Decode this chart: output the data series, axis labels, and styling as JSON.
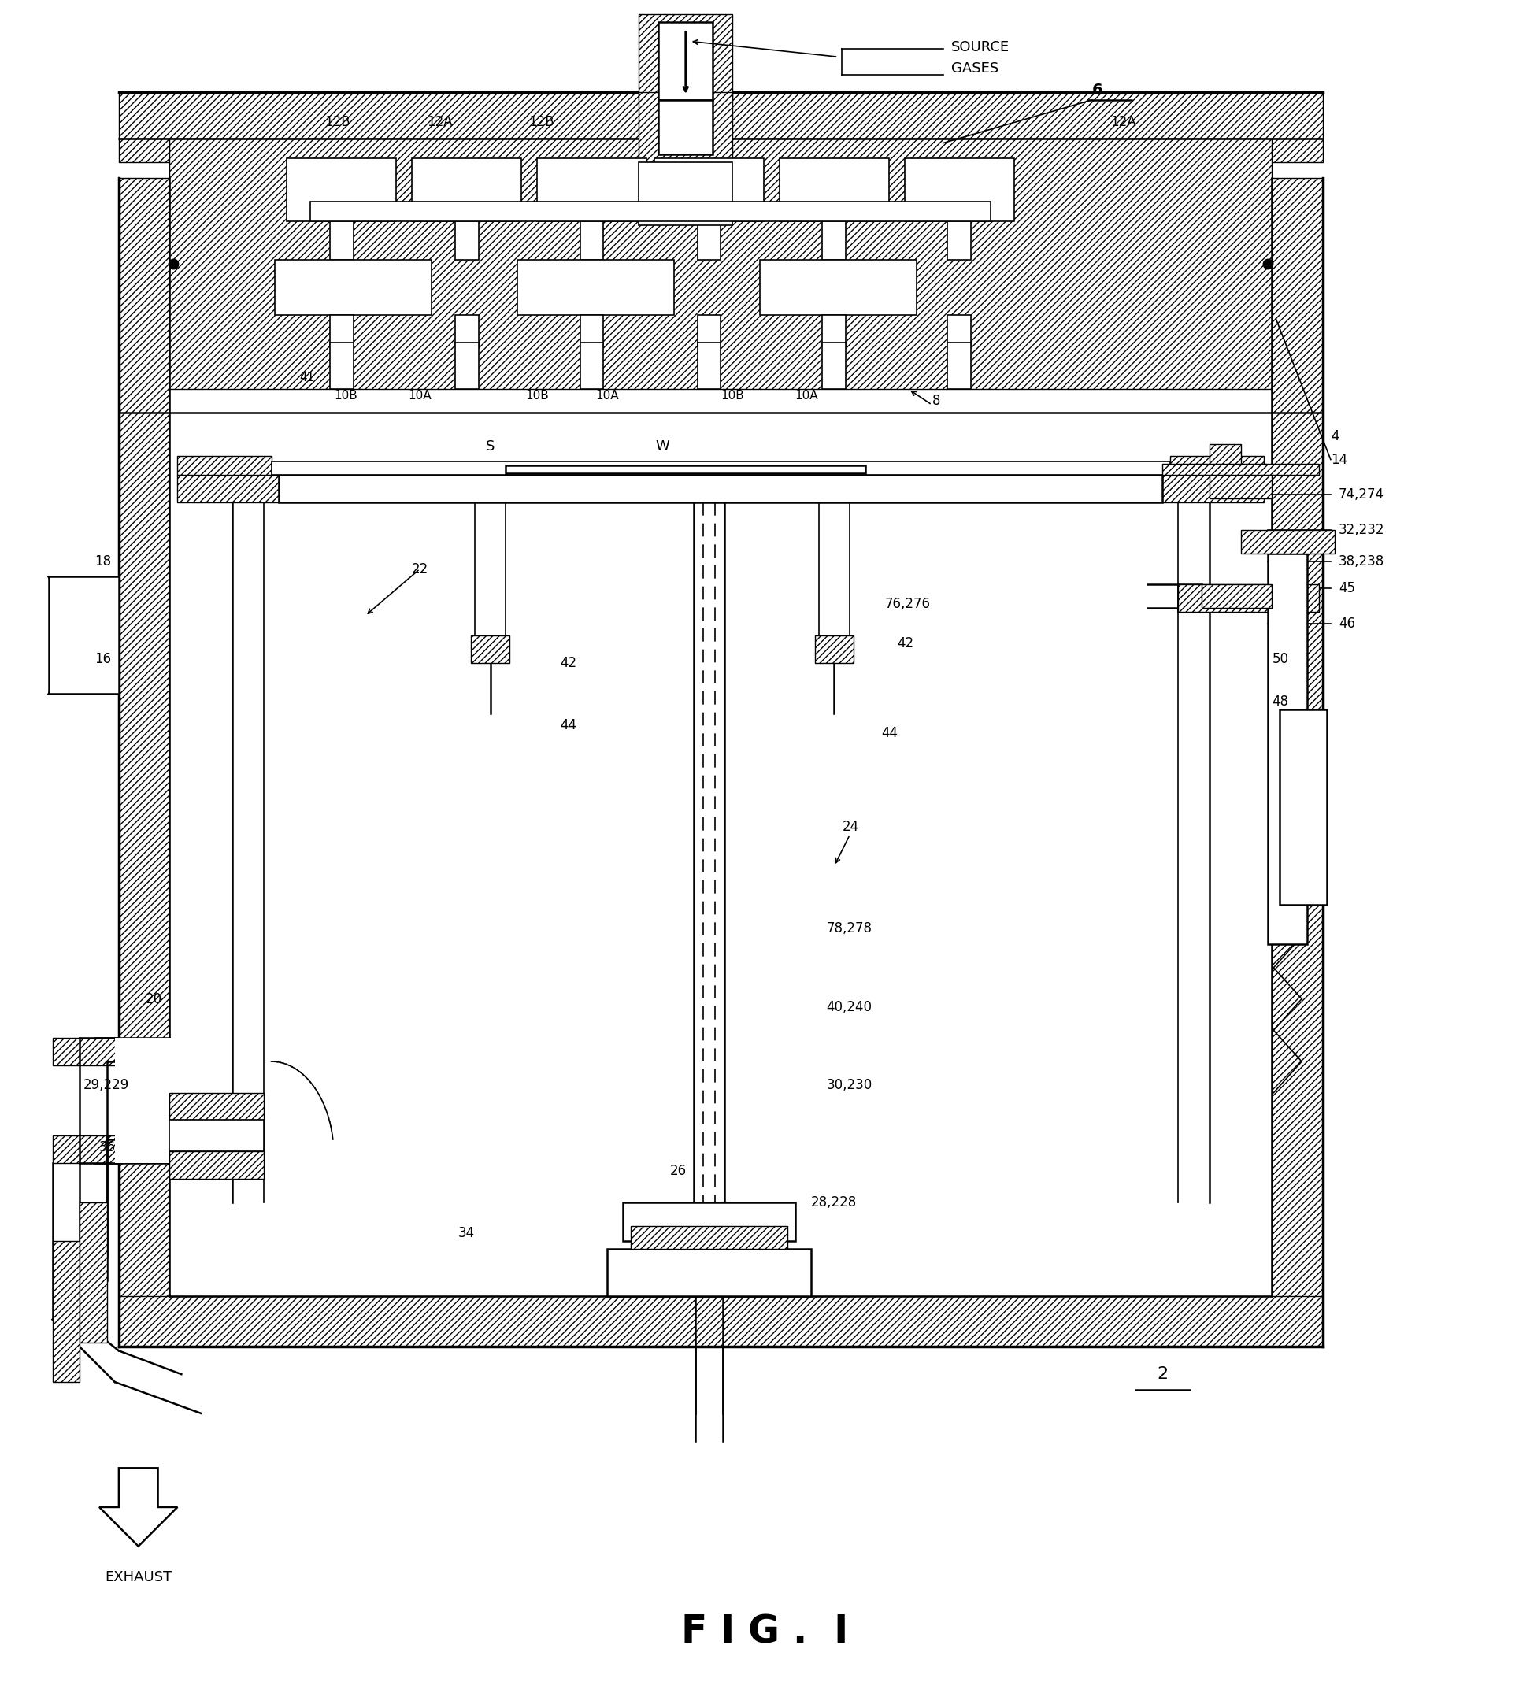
{
  "background": "#ffffff",
  "fig_title": "F I G .  I",
  "fig_num": "2",
  "source_gases": "SOURCE\nGASES",
  "exhaust_label": "EXHAUST",
  "line_color": "#000000"
}
